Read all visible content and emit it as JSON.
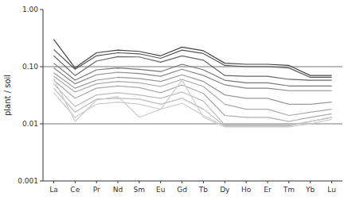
{
  "chart_data": {
    "type": "line",
    "ylabel": "plant / soil",
    "categories": [
      "La",
      "Ce",
      "Pr",
      "Nd",
      "Sm",
      "Eu",
      "Gd",
      "Tb",
      "Dy",
      "Ho",
      "Er",
      "Tm",
      "Yb",
      "Lu"
    ],
    "log": "y",
    "ylim": [
      0.001,
      1.0
    ],
    "yticks": [
      0.001,
      0.01,
      {
        "value": 0.1,
        "label": "0.10"
      },
      {
        "value": 1.0,
        "label": "1.00"
      }
    ],
    "grid": false,
    "hlines": [
      0.1,
      0.01
    ],
    "series": [
      {
        "color": "#444444",
        "values": [
          0.3,
          0.095,
          0.175,
          0.195,
          0.185,
          0.155,
          0.22,
          0.19,
          0.115,
          0.11,
          0.11,
          0.105,
          0.07,
          0.07
        ]
      },
      {
        "color": "#555555",
        "values": [
          0.2,
          0.09,
          0.155,
          0.175,
          0.168,
          0.14,
          0.195,
          0.17,
          0.105,
          0.1,
          0.1,
          0.095,
          0.065,
          0.065
        ]
      },
      {
        "color": "#666666",
        "values": [
          0.155,
          0.07,
          0.125,
          0.15,
          0.148,
          0.12,
          0.155,
          0.13,
          0.07,
          0.068,
          0.068,
          0.06,
          0.058,
          0.058
        ]
      },
      {
        "color": "#777777",
        "values": [
          0.115,
          0.058,
          0.088,
          0.095,
          0.09,
          0.082,
          0.11,
          0.088,
          0.058,
          0.052,
          0.052,
          0.046,
          0.046,
          0.046
        ]
      },
      {
        "color": "#888888",
        "values": [
          0.095,
          0.05,
          0.072,
          0.08,
          0.076,
          0.068,
          0.09,
          0.07,
          0.048,
          0.042,
          0.042,
          0.038,
          0.038,
          0.038
        ]
      },
      {
        "color": "#999999",
        "values": [
          0.078,
          0.042,
          0.058,
          0.065,
          0.062,
          0.055,
          0.072,
          0.055,
          0.032,
          0.028,
          0.028,
          0.022,
          0.022,
          0.024
        ]
      },
      {
        "color": "#aaaaaa",
        "values": [
          0.068,
          0.036,
          0.05,
          0.055,
          0.052,
          0.045,
          0.06,
          0.045,
          0.022,
          0.018,
          0.018,
          0.014,
          0.016,
          0.018
        ]
      },
      {
        "color": "#aaaaaa",
        "values": [
          0.058,
          0.028,
          0.042,
          0.046,
          0.043,
          0.035,
          0.048,
          0.034,
          0.014,
          0.013,
          0.013,
          0.011,
          0.013,
          0.015
        ]
      },
      {
        "color": "#bbbbbb",
        "values": [
          0.05,
          0.02,
          0.032,
          0.035,
          0.032,
          0.028,
          0.036,
          0.025,
          0.0095,
          0.0095,
          0.0095,
          0.0095,
          0.011,
          0.013
        ]
      },
      {
        "color": "#bbbbbb",
        "values": [
          0.042,
          0.016,
          0.027,
          0.028,
          0.027,
          0.022,
          0.028,
          0.018,
          0.0092,
          0.0092,
          0.0092,
          0.0092,
          0.011,
          0.013
        ]
      },
      {
        "color": "#cccccc",
        "values": [
          0.035,
          0.013,
          0.022,
          0.024,
          0.022,
          0.018,
          0.023,
          0.014,
          0.009,
          0.009,
          0.009,
          0.009,
          0.011,
          0.013
        ]
      },
      {
        "color": "#cccccc",
        "values": [
          0.062,
          0.011,
          0.026,
          0.03,
          0.013,
          0.018,
          0.058,
          0.013,
          0.0088,
          0.0088,
          0.0088,
          0.0088,
          0.01,
          0.012
        ]
      }
    ]
  }
}
